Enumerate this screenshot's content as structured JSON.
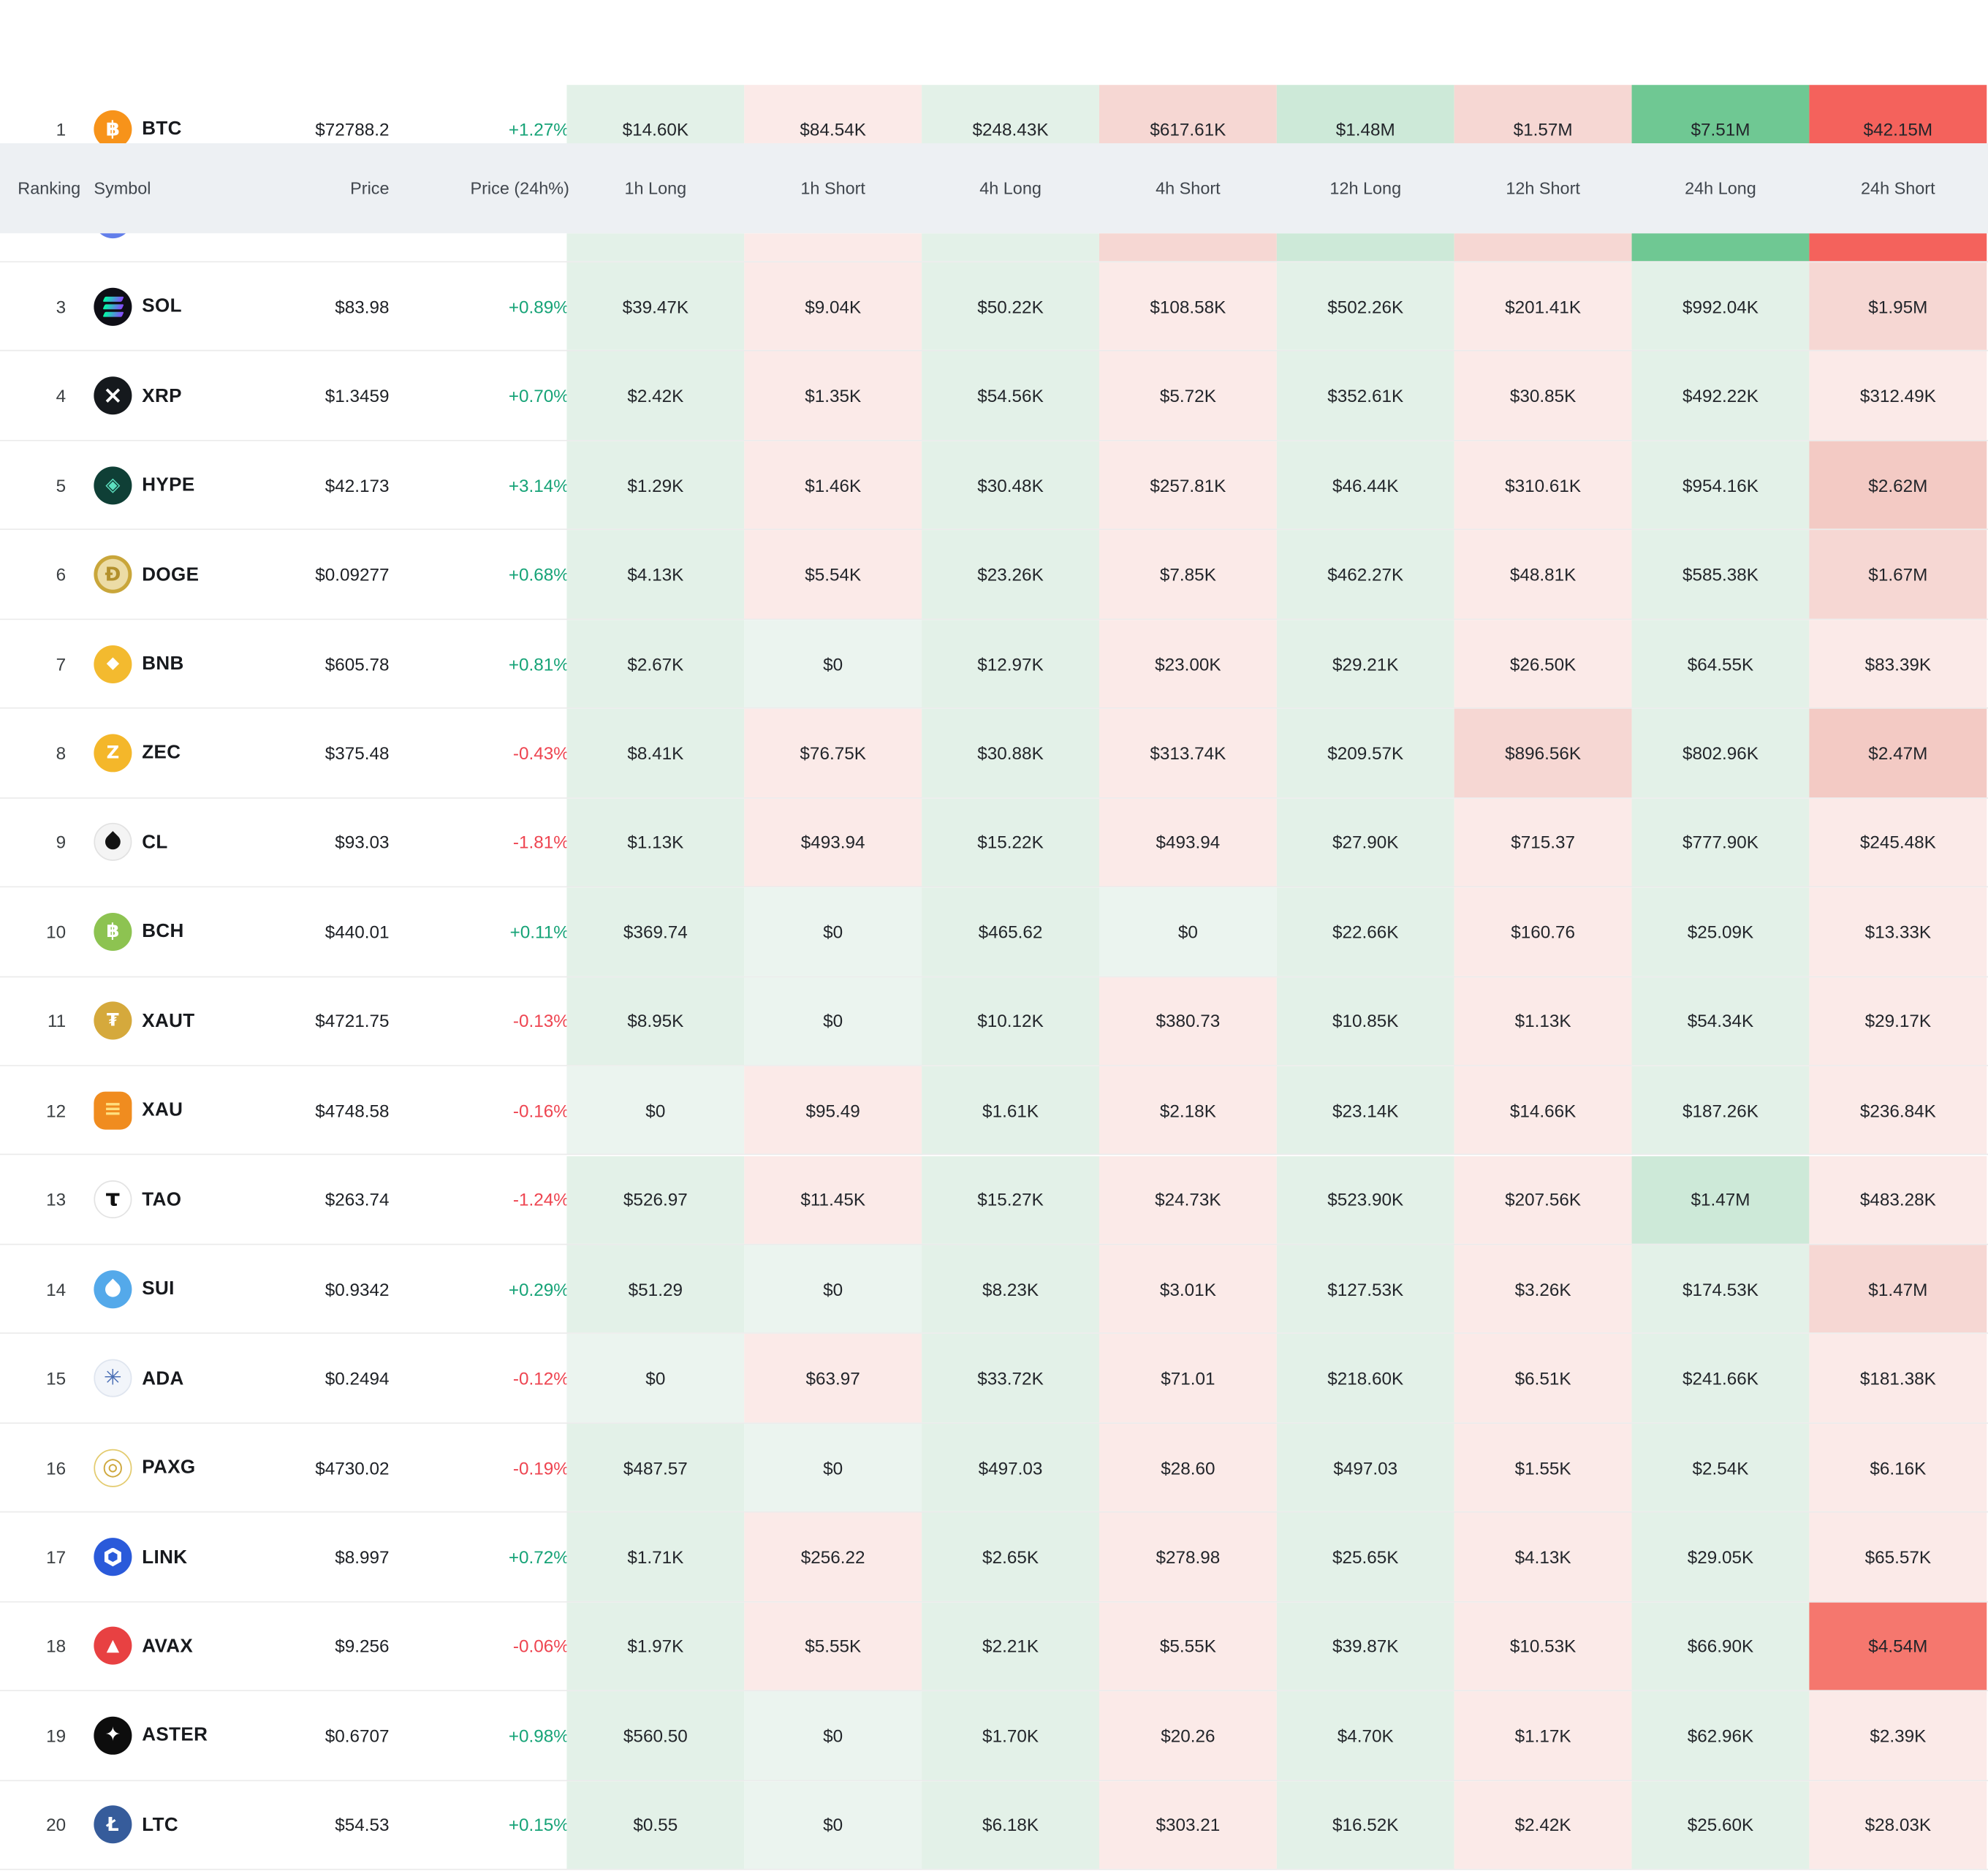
{
  "palette": {
    "g0": "#ebf4ef",
    "g1": "#e3f1e8",
    "g2": "#cde9d8",
    "g3": "#6fc893",
    "r1": "#fbeae8",
    "r2": "#f6d7d3",
    "r3": "#f3cac4",
    "r4": "#f4625c",
    "r5": "#f5776e",
    "pos_text": "#16a377",
    "neg_text": "#ee4450",
    "header_bg": "#edf0f3",
    "row_border": "#ebebeb"
  },
  "columns": [
    "Ranking",
    "Symbol",
    "Price",
    "Price (24h%)",
    "1h Long",
    "1h Short",
    "4h Long",
    "4h Short",
    "12h Long",
    "12h Short",
    "24h Long",
    "24h Short"
  ],
  "hidden_row": {
    "icon_color": "#627eea",
    "cell_bgs": [
      "g1",
      "r1",
      "g1",
      "r2",
      "g2",
      "r2",
      "g3",
      "r4"
    ]
  },
  "rows": [
    {
      "rank": "1",
      "symbol": "BTC",
      "price": "$72788.2",
      "change": "+1.27%",
      "dir": "pos",
      "icon": {
        "shape": "text",
        "glyph": "฿",
        "bg": "#f7931a",
        "fg": "#ffffff",
        "fs": 16
      },
      "cells": [
        {
          "v": "$14.60K",
          "bg": "g1"
        },
        {
          "v": "$84.54K",
          "bg": "r1"
        },
        {
          "v": "$248.43K",
          "bg": "g1"
        },
        {
          "v": "$617.61K",
          "bg": "r2"
        },
        {
          "v": "$1.48M",
          "bg": "g2"
        },
        {
          "v": "$1.57M",
          "bg": "r2"
        },
        {
          "v": "$7.51M",
          "bg": "g3"
        },
        {
          "v": "$42.15M",
          "bg": "r4"
        }
      ]
    },
    {
      "rank": "3",
      "symbol": "SOL",
      "price": "$83.98",
      "change": "+0.89%",
      "dir": "pos",
      "icon": {
        "shape": "bars",
        "bg": "#0e0e16",
        "fg": "#00ffa3"
      },
      "cells": [
        {
          "v": "$39.47K",
          "bg": "g1"
        },
        {
          "v": "$9.04K",
          "bg": "r1"
        },
        {
          "v": "$50.22K",
          "bg": "g1"
        },
        {
          "v": "$108.58K",
          "bg": "r1"
        },
        {
          "v": "$502.26K",
          "bg": "g1"
        },
        {
          "v": "$201.41K",
          "bg": "r1"
        },
        {
          "v": "$992.04K",
          "bg": "g1"
        },
        {
          "v": "$1.95M",
          "bg": "r2"
        }
      ]
    },
    {
      "rank": "4",
      "symbol": "XRP",
      "price": "$1.3459",
      "change": "+0.70%",
      "dir": "pos",
      "icon": {
        "shape": "text",
        "glyph": "×",
        "bg": "#15191d",
        "fg": "#ffffff",
        "fs": 19
      },
      "cells": [
        {
          "v": "$2.42K",
          "bg": "g1"
        },
        {
          "v": "$1.35K",
          "bg": "r1"
        },
        {
          "v": "$54.56K",
          "bg": "g1"
        },
        {
          "v": "$5.72K",
          "bg": "r1"
        },
        {
          "v": "$352.61K",
          "bg": "g1"
        },
        {
          "v": "$30.85K",
          "bg": "r1"
        },
        {
          "v": "$492.22K",
          "bg": "g1"
        },
        {
          "v": "$312.49K",
          "bg": "r1"
        }
      ]
    },
    {
      "rank": "5",
      "symbol": "HYPE",
      "price": "$42.173",
      "change": "+3.14%",
      "dir": "pos",
      "icon": {
        "shape": "text",
        "glyph": "◈",
        "bg": "#0f3f36",
        "fg": "#5de0c0",
        "fs": 15
      },
      "cells": [
        {
          "v": "$1.29K",
          "bg": "g1"
        },
        {
          "v": "$1.46K",
          "bg": "r1"
        },
        {
          "v": "$30.48K",
          "bg": "g1"
        },
        {
          "v": "$257.81K",
          "bg": "r1"
        },
        {
          "v": "$46.44K",
          "bg": "g1"
        },
        {
          "v": "$310.61K",
          "bg": "r1"
        },
        {
          "v": "$954.16K",
          "bg": "g1"
        },
        {
          "v": "$2.62M",
          "bg": "r3"
        }
      ]
    },
    {
      "rank": "6",
      "symbol": "DOGE",
      "price": "$0.09277",
      "change": "+0.68%",
      "dir": "pos",
      "icon": {
        "shape": "text",
        "glyph": "Ð",
        "bg": "#c9a63a",
        "fg": "#b3902c",
        "fs": 15,
        "inner": "#ecdca6"
      },
      "cells": [
        {
          "v": "$4.13K",
          "bg": "g1"
        },
        {
          "v": "$5.54K",
          "bg": "r1"
        },
        {
          "v": "$23.26K",
          "bg": "g1"
        },
        {
          "v": "$7.85K",
          "bg": "r1"
        },
        {
          "v": "$462.27K",
          "bg": "g1"
        },
        {
          "v": "$48.81K",
          "bg": "r1"
        },
        {
          "v": "$585.38K",
          "bg": "g1"
        },
        {
          "v": "$1.67M",
          "bg": "r2"
        }
      ]
    },
    {
      "rank": "7",
      "symbol": "BNB",
      "price": "$605.78",
      "change": "+0.81%",
      "dir": "pos",
      "icon": {
        "shape": "text",
        "glyph": "◆",
        "bg": "#f3ba2f",
        "fg": "#ffffff",
        "fs": 13
      },
      "cells": [
        {
          "v": "$2.67K",
          "bg": "g1"
        },
        {
          "v": "$0",
          "bg": "g0"
        },
        {
          "v": "$12.97K",
          "bg": "g1"
        },
        {
          "v": "$23.00K",
          "bg": "r1"
        },
        {
          "v": "$29.21K",
          "bg": "g1"
        },
        {
          "v": "$26.50K",
          "bg": "r1"
        },
        {
          "v": "$64.55K",
          "bg": "g1"
        },
        {
          "v": "$83.39K",
          "bg": "r1"
        }
      ]
    },
    {
      "rank": "8",
      "symbol": "ZEC",
      "price": "$375.48",
      "change": "-0.43%",
      "dir": "neg",
      "icon": {
        "shape": "text",
        "glyph": "Z",
        "bg": "#f4b72a",
        "fg": "#ffffff",
        "fs": 14
      },
      "cells": [
        {
          "v": "$8.41K",
          "bg": "g1"
        },
        {
          "v": "$76.75K",
          "bg": "r1"
        },
        {
          "v": "$30.88K",
          "bg": "g1"
        },
        {
          "v": "$313.74K",
          "bg": "r1"
        },
        {
          "v": "$209.57K",
          "bg": "g1"
        },
        {
          "v": "$896.56K",
          "bg": "r2"
        },
        {
          "v": "$802.96K",
          "bg": "g1"
        },
        {
          "v": "$2.47M",
          "bg": "r3"
        }
      ]
    },
    {
      "rank": "9",
      "symbol": "CL",
      "price": "$93.03",
      "change": "-1.81%",
      "dir": "neg",
      "icon": {
        "shape": "drop",
        "bg": "#f4f4f4",
        "fg": "#141414",
        "border": "#e2e2e2"
      },
      "cells": [
        {
          "v": "$1.13K",
          "bg": "g1"
        },
        {
          "v": "$493.94",
          "bg": "r1"
        },
        {
          "v": "$15.22K",
          "bg": "g1"
        },
        {
          "v": "$493.94",
          "bg": "r1"
        },
        {
          "v": "$27.90K",
          "bg": "g1"
        },
        {
          "v": "$715.37",
          "bg": "r1"
        },
        {
          "v": "$777.90K",
          "bg": "g1"
        },
        {
          "v": "$245.48K",
          "bg": "r1"
        }
      ]
    },
    {
      "rank": "10",
      "symbol": "BCH",
      "price": "$440.01",
      "change": "+0.11%",
      "dir": "pos",
      "icon": {
        "shape": "text",
        "glyph": "฿",
        "bg": "#8dc351",
        "fg": "#ffffff",
        "fs": 15
      },
      "cells": [
        {
          "v": "$369.74",
          "bg": "g1"
        },
        {
          "v": "$0",
          "bg": "g0"
        },
        {
          "v": "$465.62",
          "bg": "g1"
        },
        {
          "v": "$0",
          "bg": "g0"
        },
        {
          "v": "$22.66K",
          "bg": "g1"
        },
        {
          "v": "$160.76",
          "bg": "r1"
        },
        {
          "v": "$25.09K",
          "bg": "g1"
        },
        {
          "v": "$13.33K",
          "bg": "r1"
        }
      ]
    },
    {
      "rank": "11",
      "symbol": "XAUT",
      "price": "$4721.75",
      "change": "-0.13%",
      "dir": "neg",
      "icon": {
        "shape": "text",
        "glyph": "₮",
        "bg": "#d5a93c",
        "fg": "#ffffff",
        "fs": 14
      },
      "cells": [
        {
          "v": "$8.95K",
          "bg": "g1"
        },
        {
          "v": "$0",
          "bg": "g0"
        },
        {
          "v": "$10.12K",
          "bg": "g1"
        },
        {
          "v": "$380.73",
          "bg": "r1"
        },
        {
          "v": "$10.85K",
          "bg": "g1"
        },
        {
          "v": "$1.13K",
          "bg": "r1"
        },
        {
          "v": "$54.34K",
          "bg": "g1"
        },
        {
          "v": "$29.17K",
          "bg": "r1"
        }
      ]
    },
    {
      "rank": "12",
      "symbol": "XAU",
      "price": "$4748.58",
      "change": "-0.16%",
      "dir": "neg",
      "icon": {
        "shape": "text",
        "glyph": "≡",
        "bg": "#f08c1f",
        "fg": "#ffdf7e",
        "fs": 17,
        "radius": "9px"
      },
      "cells": [
        {
          "v": "$0",
          "bg": "g0"
        },
        {
          "v": "$95.49",
          "bg": "r1"
        },
        {
          "v": "$1.61K",
          "bg": "g1"
        },
        {
          "v": "$2.18K",
          "bg": "r1"
        },
        {
          "v": "$23.14K",
          "bg": "g1"
        },
        {
          "v": "$14.66K",
          "bg": "r1"
        },
        {
          "v": "$187.26K",
          "bg": "g1"
        },
        {
          "v": "$236.84K",
          "bg": "r1"
        }
      ]
    },
    {
      "rank": "13",
      "symbol": "TAO",
      "price": "$263.74",
      "change": "-1.24%",
      "dir": "neg",
      "icon": {
        "shape": "text",
        "glyph": "τ",
        "bg": "#ffffff",
        "fg": "#101010",
        "fs": 18,
        "border": "#e3e3e3"
      },
      "cells": [
        {
          "v": "$526.97",
          "bg": "g1"
        },
        {
          "v": "$11.45K",
          "bg": "r1"
        },
        {
          "v": "$15.27K",
          "bg": "g1"
        },
        {
          "v": "$24.73K",
          "bg": "r1"
        },
        {
          "v": "$523.90K",
          "bg": "g1"
        },
        {
          "v": "$207.56K",
          "bg": "r1"
        },
        {
          "v": "$1.47M",
          "bg": "g2"
        },
        {
          "v": "$483.28K",
          "bg": "r1"
        }
      ]
    },
    {
      "rank": "14",
      "symbol": "SUI",
      "price": "$0.9342",
      "change": "+0.29%",
      "dir": "pos",
      "icon": {
        "shape": "drop",
        "bg": "#54a9ea",
        "fg": "#ffffff"
      },
      "cells": [
        {
          "v": "$51.29",
          "bg": "g1"
        },
        {
          "v": "$0",
          "bg": "g0"
        },
        {
          "v": "$8.23K",
          "bg": "g1"
        },
        {
          "v": "$3.01K",
          "bg": "r1"
        },
        {
          "v": "$127.53K",
          "bg": "g1"
        },
        {
          "v": "$3.26K",
          "bg": "r1"
        },
        {
          "v": "$174.53K",
          "bg": "g1"
        },
        {
          "v": "$1.47M",
          "bg": "r2"
        }
      ]
    },
    {
      "rank": "15",
      "symbol": "ADA",
      "price": "$0.2494",
      "change": "-0.12%",
      "dir": "neg",
      "icon": {
        "shape": "text",
        "glyph": "✳",
        "bg": "#f2f5fa",
        "fg": "#4a6fb5",
        "fs": 17,
        "border": "#dfe5ef"
      },
      "cells": [
        {
          "v": "$0",
          "bg": "g0"
        },
        {
          "v": "$63.97",
          "bg": "r1"
        },
        {
          "v": "$33.72K",
          "bg": "g1"
        },
        {
          "v": "$71.01",
          "bg": "r1"
        },
        {
          "v": "$218.60K",
          "bg": "g1"
        },
        {
          "v": "$6.51K",
          "bg": "r1"
        },
        {
          "v": "$241.66K",
          "bg": "g1"
        },
        {
          "v": "$181.38K",
          "bg": "r1"
        }
      ]
    },
    {
      "rank": "16",
      "symbol": "PAXG",
      "price": "$4730.02",
      "change": "-0.19%",
      "dir": "neg",
      "icon": {
        "shape": "text",
        "glyph": "◎",
        "bg": "#ffffff",
        "fg": "#cfa93f",
        "fs": 19,
        "border": "#e3cb6e"
      },
      "cells": [
        {
          "v": "$487.57",
          "bg": "g1"
        },
        {
          "v": "$0",
          "bg": "g0"
        },
        {
          "v": "$497.03",
          "bg": "g1"
        },
        {
          "v": "$28.60",
          "bg": "r1"
        },
        {
          "v": "$497.03",
          "bg": "g1"
        },
        {
          "v": "$1.55K",
          "bg": "r1"
        },
        {
          "v": "$2.54K",
          "bg": "g1"
        },
        {
          "v": "$6.16K",
          "bg": "r1"
        }
      ]
    },
    {
      "rank": "17",
      "symbol": "LINK",
      "price": "$8.997",
      "change": "+0.72%",
      "dir": "pos",
      "icon": {
        "shape": "hex",
        "bg": "#2a5ada",
        "fg": "#ffffff"
      },
      "cells": [
        {
          "v": "$1.71K",
          "bg": "g1"
        },
        {
          "v": "$256.22",
          "bg": "r1"
        },
        {
          "v": "$2.65K",
          "bg": "g1"
        },
        {
          "v": "$278.98",
          "bg": "r1"
        },
        {
          "v": "$25.65K",
          "bg": "g1"
        },
        {
          "v": "$4.13K",
          "bg": "r1"
        },
        {
          "v": "$29.05K",
          "bg": "g1"
        },
        {
          "v": "$65.57K",
          "bg": "r1"
        }
      ]
    },
    {
      "rank": "18",
      "symbol": "AVAX",
      "price": "$9.256",
      "change": "-0.06%",
      "dir": "neg",
      "icon": {
        "shape": "text",
        "glyph": "▲",
        "bg": "#e84142",
        "fg": "#ffffff",
        "fs": 13
      },
      "cells": [
        {
          "v": "$1.97K",
          "bg": "g1"
        },
        {
          "v": "$5.55K",
          "bg": "r1"
        },
        {
          "v": "$2.21K",
          "bg": "g1"
        },
        {
          "v": "$5.55K",
          "bg": "r1"
        },
        {
          "v": "$39.87K",
          "bg": "g1"
        },
        {
          "v": "$10.53K",
          "bg": "r1"
        },
        {
          "v": "$66.90K",
          "bg": "g1"
        },
        {
          "v": "$4.54M",
          "bg": "r5"
        }
      ]
    },
    {
      "rank": "19",
      "symbol": "ASTER",
      "price": "$0.6707",
      "change": "+0.98%",
      "dir": "pos",
      "icon": {
        "shape": "text",
        "glyph": "✦",
        "bg": "#0d0d0d",
        "fg": "#ffffff",
        "fs": 15
      },
      "cells": [
        {
          "v": "$560.50",
          "bg": "g1"
        },
        {
          "v": "$0",
          "bg": "g0"
        },
        {
          "v": "$1.70K",
          "bg": "g1"
        },
        {
          "v": "$20.26",
          "bg": "r1"
        },
        {
          "v": "$4.70K",
          "bg": "g1"
        },
        {
          "v": "$1.17K",
          "bg": "r1"
        },
        {
          "v": "$62.96K",
          "bg": "g1"
        },
        {
          "v": "$2.39K",
          "bg": "r1"
        }
      ]
    },
    {
      "rank": "20",
      "symbol": "LTC",
      "price": "$54.53",
      "change": "+0.15%",
      "dir": "pos",
      "icon": {
        "shape": "text",
        "glyph": "Ł",
        "bg": "#365c9b",
        "fg": "#ffffff",
        "fs": 15
      },
      "cells": [
        {
          "v": "$0.55",
          "bg": "g1"
        },
        {
          "v": "$0",
          "bg": "g0"
        },
        {
          "v": "$6.18K",
          "bg": "g1"
        },
        {
          "v": "$303.21",
          "bg": "r1"
        },
        {
          "v": "$16.52K",
          "bg": "g1"
        },
        {
          "v": "$2.42K",
          "bg": "r1"
        },
        {
          "v": "$25.60K",
          "bg": "g1"
        },
        {
          "v": "$28.03K",
          "bg": "r1"
        }
      ]
    }
  ]
}
